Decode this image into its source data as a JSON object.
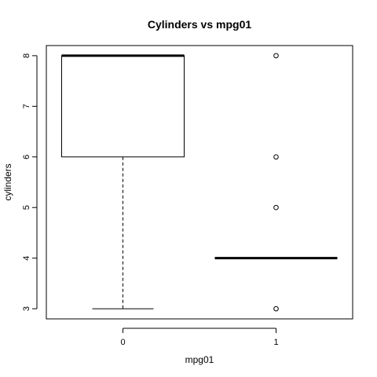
{
  "chart_data": {
    "type": "boxplot",
    "title": "Cylinders vs mpg01",
    "xlabel": "mpg01",
    "ylabel": "cylinders",
    "categories": [
      "0",
      "1"
    ],
    "ylim": [
      2.8,
      8.2
    ],
    "yticks": [
      "3",
      "4",
      "5",
      "6",
      "7",
      "8"
    ],
    "grid": false,
    "legend": "none",
    "boxes": [
      {
        "category": "0",
        "min": 3,
        "q1": 6,
        "median": 8,
        "q3": 8,
        "max": 8,
        "outliers": []
      },
      {
        "category": "1",
        "min": 4,
        "q1": 4,
        "median": 4,
        "q3": 4,
        "max": 4,
        "outliers": [
          3,
          5,
          6,
          8
        ]
      }
    ]
  }
}
